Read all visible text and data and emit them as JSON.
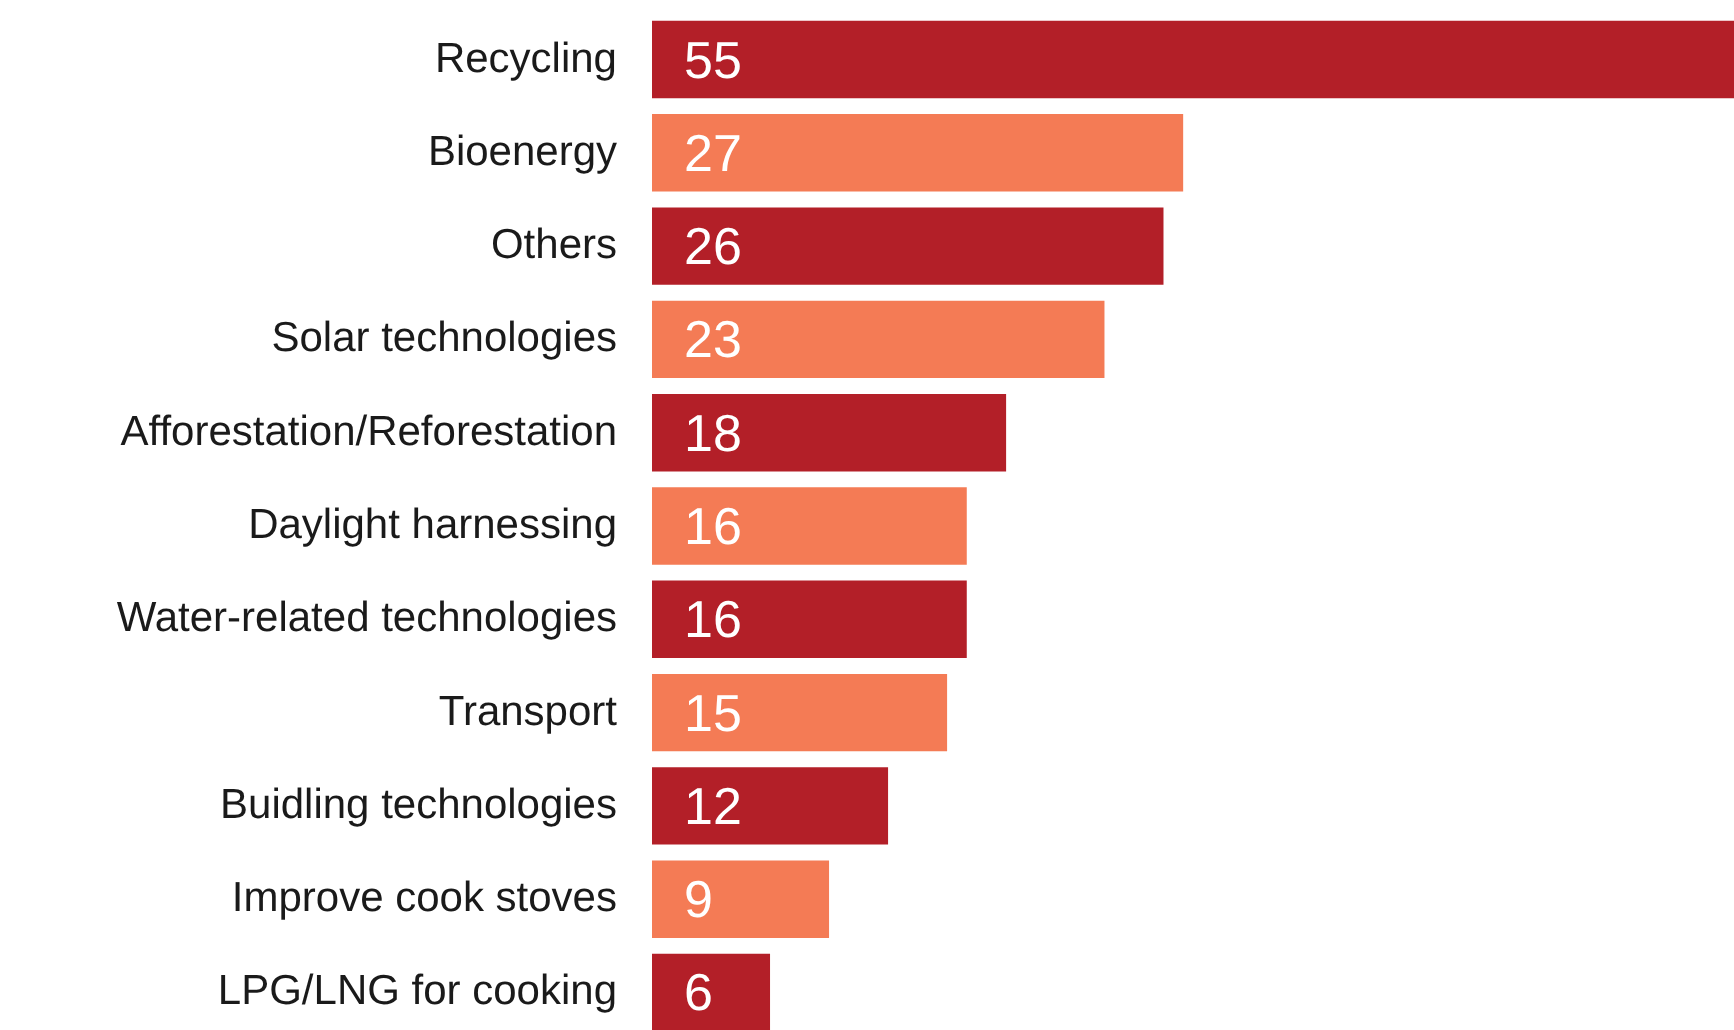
{
  "chart_data": {
    "type": "bar",
    "orientation": "horizontal",
    "data_labels": true,
    "categories": [
      "Recycling",
      "Bioenergy",
      "Others",
      "Solar technologies",
      "Afforestation/Reforestation",
      "Daylight harnessing",
      "Water-related technologies",
      "Transport",
      "Buidling technologies",
      "Improve cook stoves",
      "LPG/LNG for cooking"
    ],
    "values": [
      55,
      27,
      26,
      23,
      18,
      16,
      16,
      15,
      12,
      9,
      6
    ],
    "colors": [
      "#b31f28",
      "#f47b55",
      "#b31f28",
      "#f47b55",
      "#b31f28",
      "#f47b55",
      "#b31f28",
      "#f47b55",
      "#b31f28",
      "#f47b55",
      "#b31f28"
    ]
  }
}
